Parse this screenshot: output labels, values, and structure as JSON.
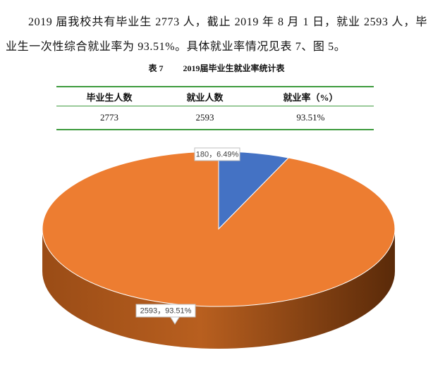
{
  "paragraph": "2019 届我校共有毕业生 2773 人，截止 2019 年 8 月 1 日，就业 2593 人，毕业生一次性综合就业率为 93.51%。具体就业率情况见表 7、图 5。",
  "table": {
    "caption_number": "表 7",
    "caption": "2019届毕业生就业率统计表",
    "headers": [
      "毕业生人数",
      "就业人数",
      "就业率（%）"
    ],
    "rows": [
      [
        "2773",
        "2593",
        "93.51%"
      ]
    ]
  },
  "chart_data": {
    "type": "pie",
    "values": [
      180,
      2593
    ],
    "value_labels": [
      "180，6.49%",
      "2593，93.51%"
    ],
    "colors": [
      "#4472c4",
      "#ed7d31"
    ]
  }
}
